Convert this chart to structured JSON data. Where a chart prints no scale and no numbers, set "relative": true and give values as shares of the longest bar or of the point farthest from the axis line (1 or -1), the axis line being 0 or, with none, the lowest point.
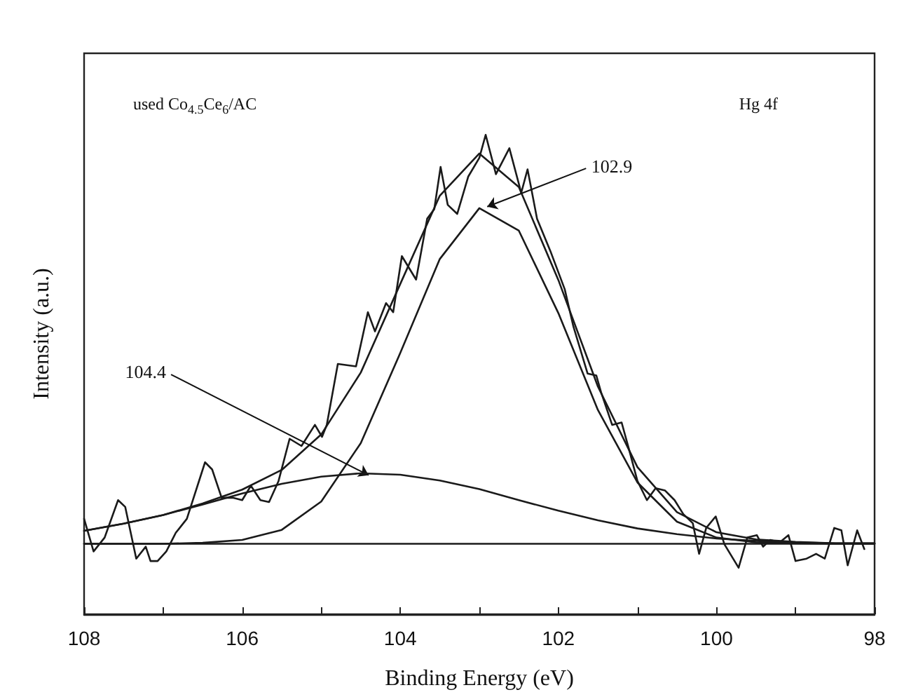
{
  "chart_data": {
    "type": "line",
    "relative": true,
    "xlabel": "Binding Energy (eV)",
    "ylabel": "Intensity (a.u.)",
    "xlim": [
      108,
      98
    ],
    "xticks": [
      108,
      {
        "value": 107,
        "label": null
      },
      106,
      {
        "value": 105,
        "label": null
      },
      104,
      {
        "value": 103,
        "label": null
      },
      102,
      {
        "value": 101,
        "label": null
      },
      100,
      {
        "value": 99,
        "label": null
      },
      98
    ],
    "marker": "none",
    "annotations": [
      "used Co$_{4.5}$Ce$_{6}$/AC",
      "Hg 4f",
      {
        "text": "102.9",
        "x": 102.9,
        "y": 0.85
      },
      {
        "text": "104.4",
        "x": 104.4,
        "y": 0.29
      }
    ],
    "series": [
      {
        "color": "#1a1a1a",
        "x": [
          108.0,
          107.88,
          107.74,
          107.57,
          107.48,
          107.34,
          107.22,
          107.16,
          107.07,
          106.96,
          106.84,
          106.7,
          106.47,
          106.38,
          106.26,
          106.12,
          106.0,
          105.89,
          105.77,
          105.66,
          105.54,
          105.4,
          105.25,
          105.08,
          104.99,
          104.93,
          104.79,
          104.56,
          104.41,
          104.32,
          104.18,
          104.09,
          103.98,
          103.8,
          103.66,
          103.57,
          103.49,
          103.4,
          103.28,
          103.14,
          103.0,
          102.92,
          102.79,
          102.62,
          102.47,
          102.39,
          102.27,
          102.1,
          101.92,
          101.81,
          101.63,
          101.52,
          101.46,
          101.32,
          101.2,
          101.11,
          101.0,
          100.88,
          100.77,
          100.65,
          100.53,
          100.42,
          100.3,
          100.22,
          100.13,
          100.01,
          99.9,
          99.72,
          99.61,
          99.49,
          99.41,
          99.32,
          99.2,
          99.09,
          99.0,
          98.86,
          98.74,
          98.63,
          98.51,
          98.42,
          98.34,
          98.22,
          98.13
        ],
        "values": [
          0.199,
          0.131,
          0.16,
          0.238,
          0.224,
          0.116,
          0.141,
          0.111,
          0.111,
          0.131,
          0.17,
          0.199,
          0.317,
          0.302,
          0.243,
          0.243,
          0.238,
          0.268,
          0.238,
          0.234,
          0.278,
          0.366,
          0.351,
          0.395,
          0.37,
          0.395,
          0.522,
          0.517,
          0.63,
          0.59,
          0.649,
          0.63,
          0.747,
          0.698,
          0.825,
          0.845,
          0.933,
          0.854,
          0.835,
          0.913,
          0.952,
          1.0,
          0.918,
          0.972,
          0.879,
          0.928,
          0.825,
          0.757,
          0.678,
          0.6,
          0.502,
          0.498,
          0.463,
          0.395,
          0.4,
          0.346,
          0.278,
          0.238,
          0.263,
          0.258,
          0.238,
          0.209,
          0.19,
          0.126,
          0.18,
          0.204,
          0.146,
          0.097,
          0.16,
          0.165,
          0.141,
          0.155,
          0.15,
          0.165,
          0.111,
          0.116,
          0.126,
          0.116,
          0.18,
          0.175,
          0.102,
          0.175,
          0.136
        ]
      },
      {
        "color": "#1a1a1a",
        "x": [
          108,
          107.5,
          107,
          106.5,
          106,
          105.5,
          105,
          104.5,
          104,
          103.5,
          103,
          102.5,
          102,
          101.5,
          101,
          100.5,
          100,
          99.5,
          99,
          98.5,
          98
        ],
        "values": [
          0.174,
          0.189,
          0.207,
          0.231,
          0.26,
          0.301,
          0.375,
          0.504,
          0.689,
          0.873,
          0.961,
          0.891,
          0.697,
          0.475,
          0.307,
          0.213,
          0.171,
          0.156,
          0.151,
          0.148,
          0.148
        ]
      },
      {
        "color": "#1a1a1a",
        "x": [
          108,
          107.5,
          107,
          106.5,
          106,
          105.5,
          105,
          104.5,
          104,
          103.5,
          103,
          102.5,
          102,
          101.5,
          101,
          100.5,
          100,
          99.5,
          99,
          98.5,
          98
        ],
        "values": [
          0.147,
          0.147,
          0.147,
          0.149,
          0.155,
          0.176,
          0.235,
          0.357,
          0.545,
          0.741,
          0.847,
          0.8,
          0.628,
          0.426,
          0.275,
          0.193,
          0.16,
          0.15,
          0.148,
          0.147,
          0.147
        ]
      },
      {
        "color": "#1a1a1a",
        "x": [
          108,
          107.5,
          107,
          106.5,
          106,
          105.5,
          105,
          104.5,
          104,
          103.5,
          103,
          102.5,
          102,
          101.5,
          101,
          100.5,
          100,
          99.5,
          99,
          98.5,
          98
        ],
        "values": [
          0.174,
          0.189,
          0.207,
          0.229,
          0.252,
          0.272,
          0.287,
          0.294,
          0.291,
          0.279,
          0.261,
          0.238,
          0.216,
          0.196,
          0.179,
          0.167,
          0.158,
          0.153,
          0.15,
          0.148,
          0.148
        ]
      },
      {
        "color": "#1a1a1a",
        "x": [
          108,
          98
        ],
        "values": [
          0.147,
          0.147
        ]
      }
    ]
  }
}
